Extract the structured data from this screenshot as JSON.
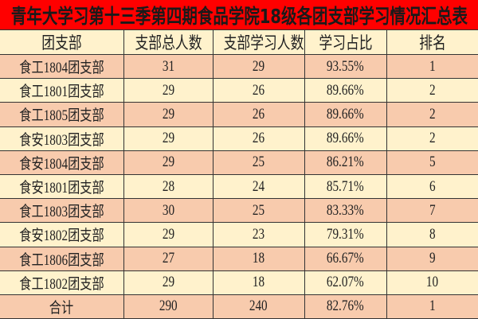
{
  "title": "青年大学习第十三季第四期食品学院18级各团支部学习情况汇总表",
  "colors": {
    "title_bg": "#ff0000",
    "row_peach": "#f8cbad",
    "row_cream": "#fff2cc"
  },
  "columns": [
    "团支部",
    "支部总人数",
    "支部学习人数",
    "学习占比",
    "排名"
  ],
  "rows": [
    [
      "食工1804团支部",
      "31",
      "29",
      "93.55%",
      "1"
    ],
    [
      "食工1801团支部",
      "29",
      "26",
      "89.66%",
      "2"
    ],
    [
      "食工1805团支部",
      "29",
      "26",
      "89.66%",
      "2"
    ],
    [
      "食安1803团支部",
      "29",
      "26",
      "89.66%",
      "2"
    ],
    [
      "食安1804团支部",
      "29",
      "25",
      "86.21%",
      "5"
    ],
    [
      "食安1801团支部",
      "28",
      "24",
      "85.71%",
      "6"
    ],
    [
      "食工1803团支部",
      "30",
      "25",
      "83.33%",
      "7"
    ],
    [
      "食安1802团支部",
      "29",
      "23",
      "79.31%",
      "8"
    ],
    [
      "食工1806团支部",
      "27",
      "18",
      "66.67%",
      "9"
    ],
    [
      "食工1802团支部",
      "29",
      "18",
      "62.07%",
      "10"
    ],
    [
      "合计",
      "290",
      "240",
      "82.76%",
      "1"
    ]
  ]
}
